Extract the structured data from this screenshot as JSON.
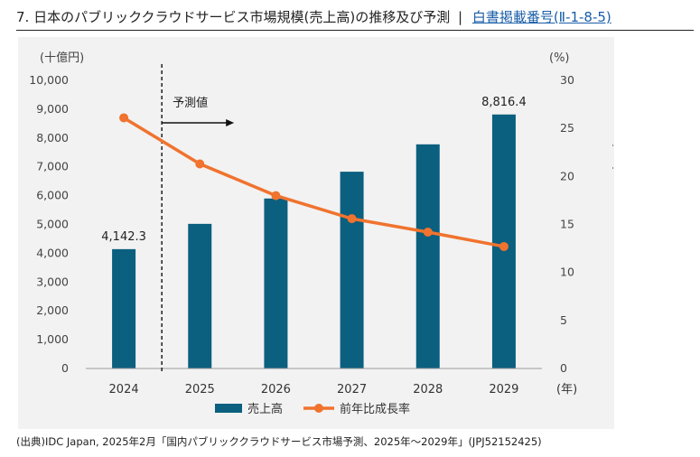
{
  "heading": {
    "number": "7.",
    "title": "日本のパブリッククラウドサービス市場規模(売上高)の推移及び予測",
    "separator": "|",
    "link_text": "白書掲載番号(Ⅱ-1-8-5)"
  },
  "source": "(出典)IDC Japan, 2025年2月「国内パブリッククラウドサービス市場予測、2025年～2029年」(JPJ52152425)",
  "colors": {
    "bar": "#0b5f7f",
    "line": "#f0732e",
    "link": "#1a5ea8",
    "chart_bg": "#f2f2f2"
  },
  "chart_data": {
    "type": "bar",
    "categories": [
      "2024",
      "2025",
      "2026",
      "2027",
      "2028",
      "2029"
    ],
    "series": [
      {
        "name": "売上高",
        "type": "bar",
        "axis": "left",
        "values": [
          4142.3,
          5020,
          5900,
          6830,
          7780,
          8816.4
        ]
      },
      {
        "name": "前年比成長率",
        "type": "line",
        "axis": "right",
        "values": [
          26.1,
          21.3,
          18.0,
          15.6,
          14.2,
          12.7
        ]
      }
    ],
    "data_labels": [
      {
        "category": "2024",
        "text": "4,142.3"
      },
      {
        "category": "2029",
        "text": "8,816.4"
      }
    ],
    "left_axis": {
      "unit_label": "(十億円)",
      "ylim": [
        0,
        10000
      ],
      "ticks": [
        "0",
        "1,000",
        "2,000",
        "3,000",
        "4,000",
        "5,000",
        "6,000",
        "7,000",
        "8,000",
        "9,000",
        "10,000"
      ]
    },
    "right_axis": {
      "unit_label": "(%)",
      "ylim": [
        0,
        30
      ],
      "ticks": [
        "0",
        "5",
        "10",
        "15",
        "20",
        "25",
        "30"
      ]
    },
    "x_unit_label": "(年)",
    "forecast": {
      "label": "予測値",
      "start_after": "2024"
    },
    "legend": {
      "position": "bottom"
    },
    "grid": false
  }
}
